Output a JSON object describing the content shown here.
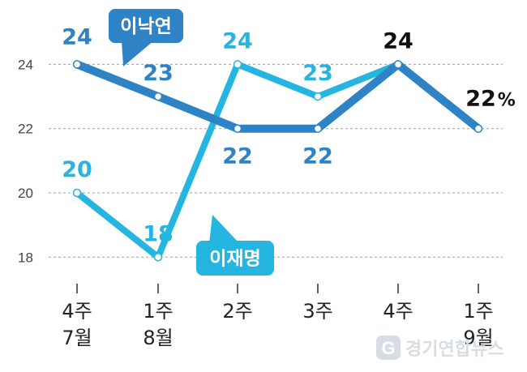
{
  "chart_data": {
    "type": "line",
    "categories": [
      [
        "4주",
        "7월"
      ],
      [
        "1주",
        "8월"
      ],
      [
        "2주",
        ""
      ],
      [
        "3주",
        ""
      ],
      [
        "4주",
        ""
      ],
      [
        "1주",
        "9월"
      ]
    ],
    "yticks": [
      18,
      20,
      22,
      24
    ],
    "ylim": [
      17.2,
      25.6
    ],
    "grid": true,
    "series": [
      {
        "name": "이낙연",
        "color": "#2e83c7",
        "values": [
          24,
          23,
          22,
          22,
          24,
          22
        ],
        "labels": [
          "24",
          "23",
          "22",
          "22",
          "24",
          "22"
        ]
      },
      {
        "name": "이재명",
        "color": "#24b6e0",
        "values": [
          20,
          18,
          24,
          23,
          24,
          null
        ],
        "labels": [
          "20",
          "18",
          "24",
          "23",
          "",
          ""
        ]
      }
    ],
    "emphasis_color": "#111111",
    "last_value_unit": "%"
  },
  "watermark": "경기연합뉴스"
}
